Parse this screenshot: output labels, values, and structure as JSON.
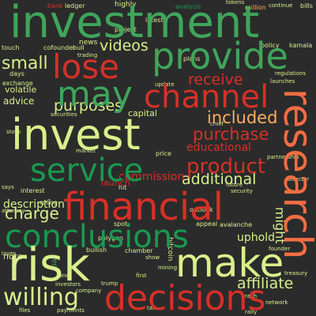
{
  "palette": {
    "background": "#2b2b2b",
    "light_green": "#d9ef8b",
    "green": "#3fa55b",
    "dark_green": "#1a9850",
    "red": "#d73027",
    "orange": "#f46d43",
    "peach": "#fdae61"
  },
  "words": {
    "investment": "investment",
    "provide": "provide",
    "lose": "lose",
    "may": "may",
    "channel": "channel",
    "invest": "invest",
    "research": "research",
    "service": "service",
    "product": "product",
    "financial": "financial",
    "conclusions": "conclusions",
    "risk": "risk",
    "make": "make",
    "decisions": "decisions",
    "willing": "willing",
    "affiliate": "affiliate",
    "purchase": "purchase",
    "included": "included",
    "educational": "educational",
    "additional": "additional",
    "commission": "commission",
    "charge": "charge",
    "description": "description",
    "small": "small",
    "purposes": "purposes",
    "receive": "receive",
    "videos": "videos",
    "might": "might",
    "uphold": "uphold",
    "capital": "capital",
    "advice": "advice",
    "volatile": "volatile",
    "launch": "launch",
    "note": "note",
    "highly": "highly",
    "news": "news",
    "ledger": "ledger",
    "bank": "bank",
    "analysis": "analysis",
    "million": "million",
    "bills": "bills",
    "continue": "continue",
    "plans": "plans",
    "policy": "policy",
    "kamala": "kamala",
    "regulations": "regulations",
    "launches": "launches",
    "chief": "chief",
    "director": "director",
    "future": "future",
    "security": "security",
    "outlook": "outlook",
    "appeal": "appeal",
    "avalanche": "avalanche",
    "founder": "founder",
    "treasury": "treasury",
    "trump": "trump",
    "bullish": "bullish",
    "chamber": "chamber",
    "show": "show",
    "bitcoin": "bitcoin",
    "sec": "sec",
    "investors": "investors",
    "company": "company",
    "payments": "payments",
    "price": "price",
    "market": "market",
    "spot": "spot",
    "polygon": "polygon",
    "hit": "hit",
    "first": "first",
    "files": "files",
    "attorney": "attorney",
    "ruling": "ruling",
    "interest": "interest",
    "says": "says",
    "securities": "securities",
    "trading": "trading",
    "cofounder": "cofounder",
    "touch": "touch",
    "days": "days",
    "latest": "latest",
    "project": "project",
    "exchange": "exchange",
    "mining": "mining",
    "fund": "fund",
    "tax": "tax",
    "bull": "bull",
    "crash": "crash",
    "partnership": "partnership",
    "stock": "stock",
    "update": "update",
    "tokens": "tokens",
    "layer": "layer",
    "network": "network",
    "rally": "rally"
  }
}
